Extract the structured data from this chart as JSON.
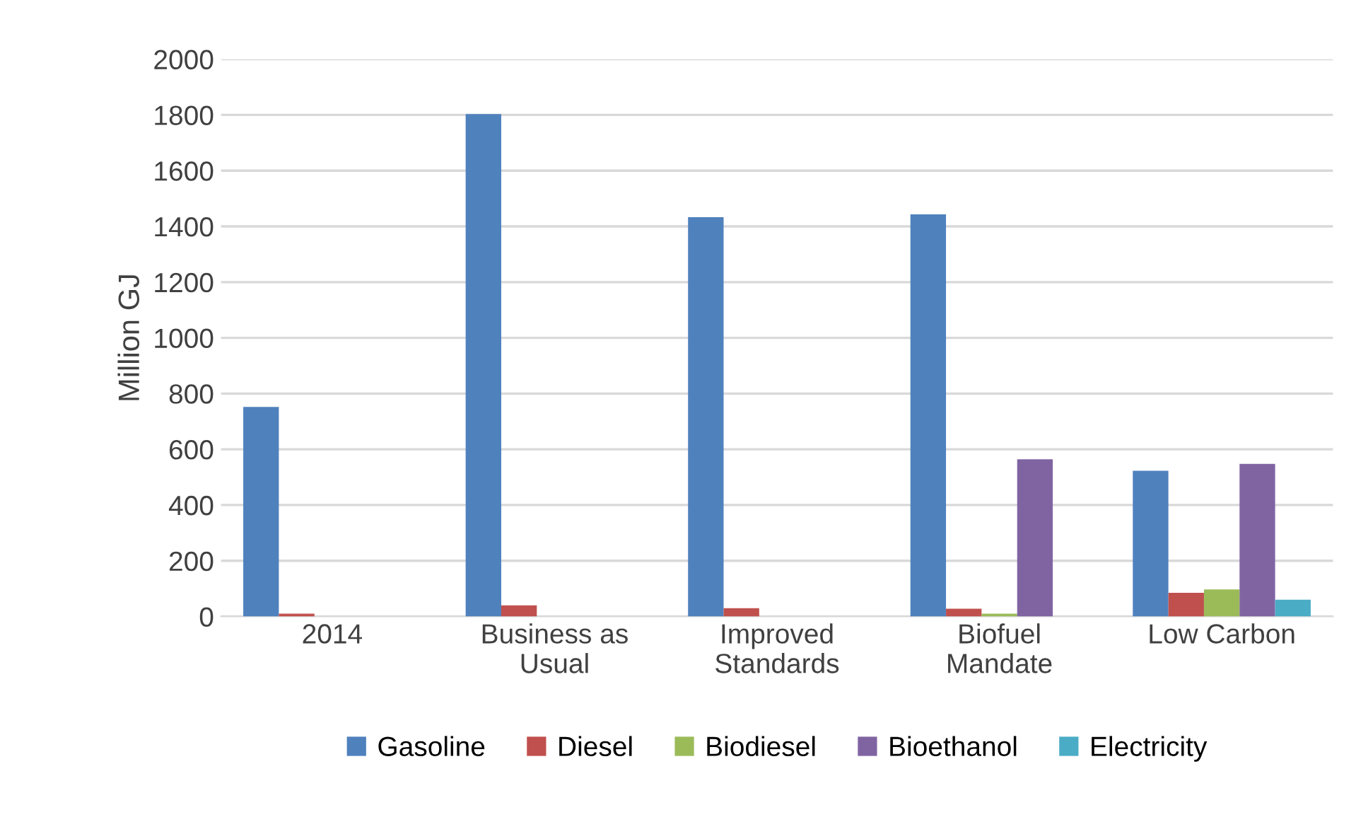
{
  "chart_data": {
    "type": "bar",
    "ylabel": "Million GJ",
    "categories": [
      "2014",
      "Business as\nUsual",
      "Improved\nStandards",
      "Biofuel\nMandate",
      "Low Carbon"
    ],
    "series": [
      {
        "name": "Gasoline",
        "color": "#4f81bd",
        "values": [
          752,
          1803,
          1433,
          1443,
          523
        ]
      },
      {
        "name": "Diesel",
        "color": "#c0504d",
        "values": [
          10,
          40,
          30,
          28,
          85
        ]
      },
      {
        "name": "Biodiesel",
        "color": "#9bbb59",
        "values": [
          0,
          0,
          0,
          10,
          97
        ]
      },
      {
        "name": "Bioethanol",
        "color": "#8064a2",
        "values": [
          0,
          0,
          0,
          564,
          548
        ]
      },
      {
        "name": "Electricity",
        "color": "#4bacc6",
        "values": [
          0,
          0,
          0,
          0,
          60
        ]
      }
    ],
    "ylim": [
      0,
      2000
    ],
    "yticks": [
      0,
      200,
      400,
      600,
      800,
      1000,
      1200,
      1400,
      1600,
      1800,
      2000
    ],
    "grid": "y",
    "legend": "bottom"
  }
}
